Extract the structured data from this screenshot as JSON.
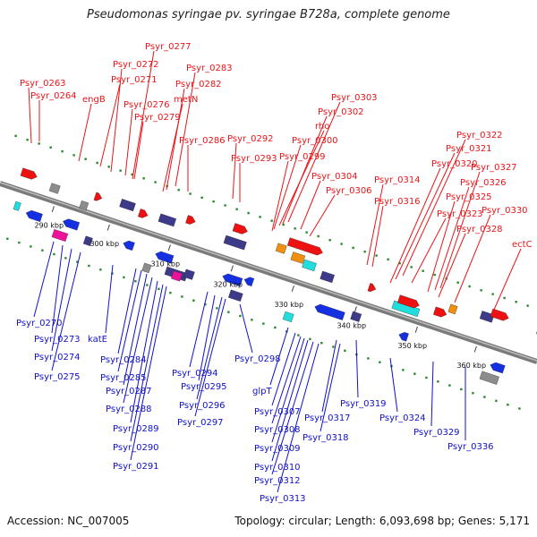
{
  "title": "Pseudomonas syringae pv. syringae B728a, complete genome",
  "footer": {
    "accession": "Accession: NC_007005",
    "summary": "Topology: circular; Length: 6,093,698 bp; Genes: 5,171"
  },
  "colors": {
    "forward_label": "#e8151a",
    "reverse_label": "#1010c8",
    "backbone": "#7a7a7a",
    "gene_red": "#ee1111",
    "gene_blue": "#1530e0",
    "gene_navy": "#3d3a8a",
    "gene_magenta": "#ee1199",
    "gene_cyan": "#22dddd",
    "gene_orange": "#f09010",
    "gene_gray": "#8c8c8c",
    "gene_green": "#22aa44",
    "dots": "#2a8a2a"
  },
  "ticks": [
    "290 kbp",
    "300 kbp",
    "310 kbp",
    "320 kbp",
    "330 kbp",
    "340 kbp",
    "350 kbp",
    "360 kbp"
  ],
  "forward_labels": [
    "Psyr_0263",
    "Psyr_0264",
    "engB",
    "Psyr_0271",
    "Psyr_0272",
    "Psyr_0277",
    "Psyr_0276",
    "Psyr_0279",
    "Psyr_0283",
    "Psyr_0282",
    "metN",
    "Psyr_0286",
    "Psyr_0292",
    "Psyr_0293",
    "Psyr_0303",
    "Psyr_0302",
    "rho",
    "Psyr_0300",
    "Psyr_0299",
    "Psyr_0304",
    "Psyr_0306",
    "Psyr_0314",
    "Psyr_0316",
    "Psyr_0322",
    "Psyr_0321",
    "Psyr_0320",
    "Psyr_0323",
    "Psyr_0327",
    "Psyr_0326",
    "Psyr_0325",
    "Psyr_0328",
    "Psyr_0330",
    "ectC"
  ],
  "reverse_labels": [
    "Psyr_0270",
    "Psyr_0273",
    "Psyr_0274",
    "Psyr_0275",
    "katE",
    "Psyr_0284",
    "Psyr_0285",
    "Psyr_0287",
    "Psyr_0288",
    "Psyr_0289",
    "Psyr_0290",
    "Psyr_0291",
    "Psyr_0294",
    "Psyr_0295",
    "Psyr_0296",
    "Psyr_0297",
    "Psyr_0298",
    "glpT",
    "Psyr_0307",
    "Psyr_0308",
    "Psyr_0309",
    "Psyr_0310",
    "Psyr_0312",
    "Psyr_0313",
    "Psyr_0317",
    "Psyr_0318",
    "Psyr_0319",
    "Psyr_0324",
    "Psyr_0329",
    "Psyr_0336"
  ]
}
